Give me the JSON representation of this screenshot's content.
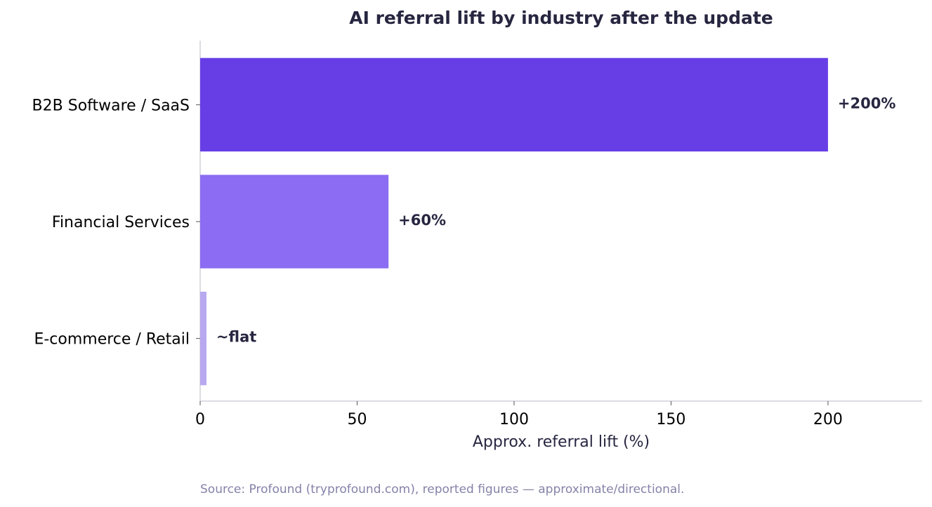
{
  "chart_data": {
    "type": "barh",
    "title": "AI referral lift by industry after the update",
    "categories": [
      "B2B Software / SaaS",
      "Financial Services",
      "E-commerce / Retail"
    ],
    "values": [
      200,
      60,
      2
    ],
    "value_labels": [
      "+200%",
      "+60%",
      "~flat"
    ],
    "colors": [
      "#673ee6",
      "#8b6cf2",
      "#b8a8f0"
    ],
    "xlim": [
      0,
      230
    ],
    "xticks": [
      0,
      50,
      100,
      150,
      200
    ],
    "xlabel": "Approx. referral lift (%)",
    "grid": false,
    "source": "Source: Profound (tryprofound.com), reported figures — approximate/directional."
  }
}
